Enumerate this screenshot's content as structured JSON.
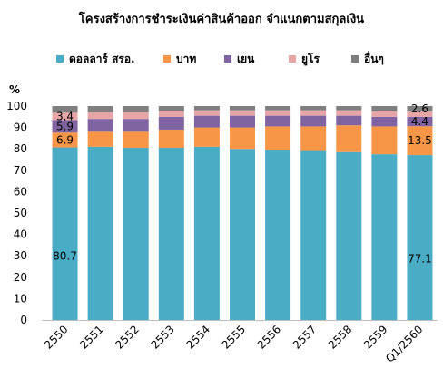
{
  "title": {
    "part1": "โครงสร้างการชำระเงินค่าสินค้าออก",
    "part2": "จำแนกตามสกุลเงิน"
  },
  "chart_data": {
    "type": "bar",
    "stacked": true,
    "ylabel": "%",
    "ylim": [
      0,
      100
    ],
    "yticks": [
      0,
      10,
      20,
      30,
      40,
      50,
      60,
      70,
      80,
      90,
      100
    ],
    "grid": false,
    "legend_position": "top",
    "categories": [
      "2550",
      "2551",
      "2552",
      "2553",
      "2554",
      "2555",
      "2556",
      "2557",
      "2558",
      "2559",
      "Q1/2560"
    ],
    "series": [
      {
        "name": "ดอลลาร์ สรอ.",
        "color": "#4BACC6",
        "values": [
          80.7,
          81.0,
          80.5,
          80.5,
          81.0,
          80.0,
          79.5,
          79.0,
          78.5,
          77.5,
          77.1
        ]
      },
      {
        "name": "บาท",
        "color": "#F79646",
        "values": [
          6.9,
          7.0,
          7.5,
          8.5,
          9.0,
          10.0,
          11.0,
          11.5,
          12.5,
          13.0,
          13.5
        ]
      },
      {
        "name": "เยน",
        "color": "#8064A2",
        "values": [
          5.9,
          6.0,
          6.0,
          6.0,
          5.5,
          5.5,
          5.0,
          5.0,
          4.5,
          4.5,
          4.4
        ]
      },
      {
        "name": "ยูโร",
        "color": "#E6A5A7",
        "values": [
          3.4,
          3.0,
          3.0,
          2.5,
          2.5,
          2.5,
          2.5,
          2.5,
          2.5,
          2.5,
          2.4
        ]
      },
      {
        "name": "อื่นๆ",
        "color": "#7F7F7F",
        "values": [
          3.1,
          3.0,
          3.0,
          2.5,
          2.0,
          2.0,
          2.0,
          2.0,
          2.0,
          2.5,
          2.6
        ]
      }
    ],
    "data_labels": [
      {
        "category": "2550",
        "series": "ดอลลาร์ สรอ.",
        "text": "80.7"
      },
      {
        "category": "2550",
        "series": "บาท",
        "text": "6.9"
      },
      {
        "category": "2550",
        "series": "เยน",
        "text": "5.9"
      },
      {
        "category": "2550",
        "series": "ยูโร",
        "text": "3.4"
      },
      {
        "category": "Q1/2560",
        "series": "ดอลลาร์ สรอ.",
        "text": "77.1"
      },
      {
        "category": "Q1/2560",
        "series": "บาท",
        "text": "13.5"
      },
      {
        "category": "Q1/2560",
        "series": "เยน",
        "text": "4.4"
      },
      {
        "category": "Q1/2560",
        "series": "อื่นๆ",
        "text": "2.6"
      }
    ]
  }
}
